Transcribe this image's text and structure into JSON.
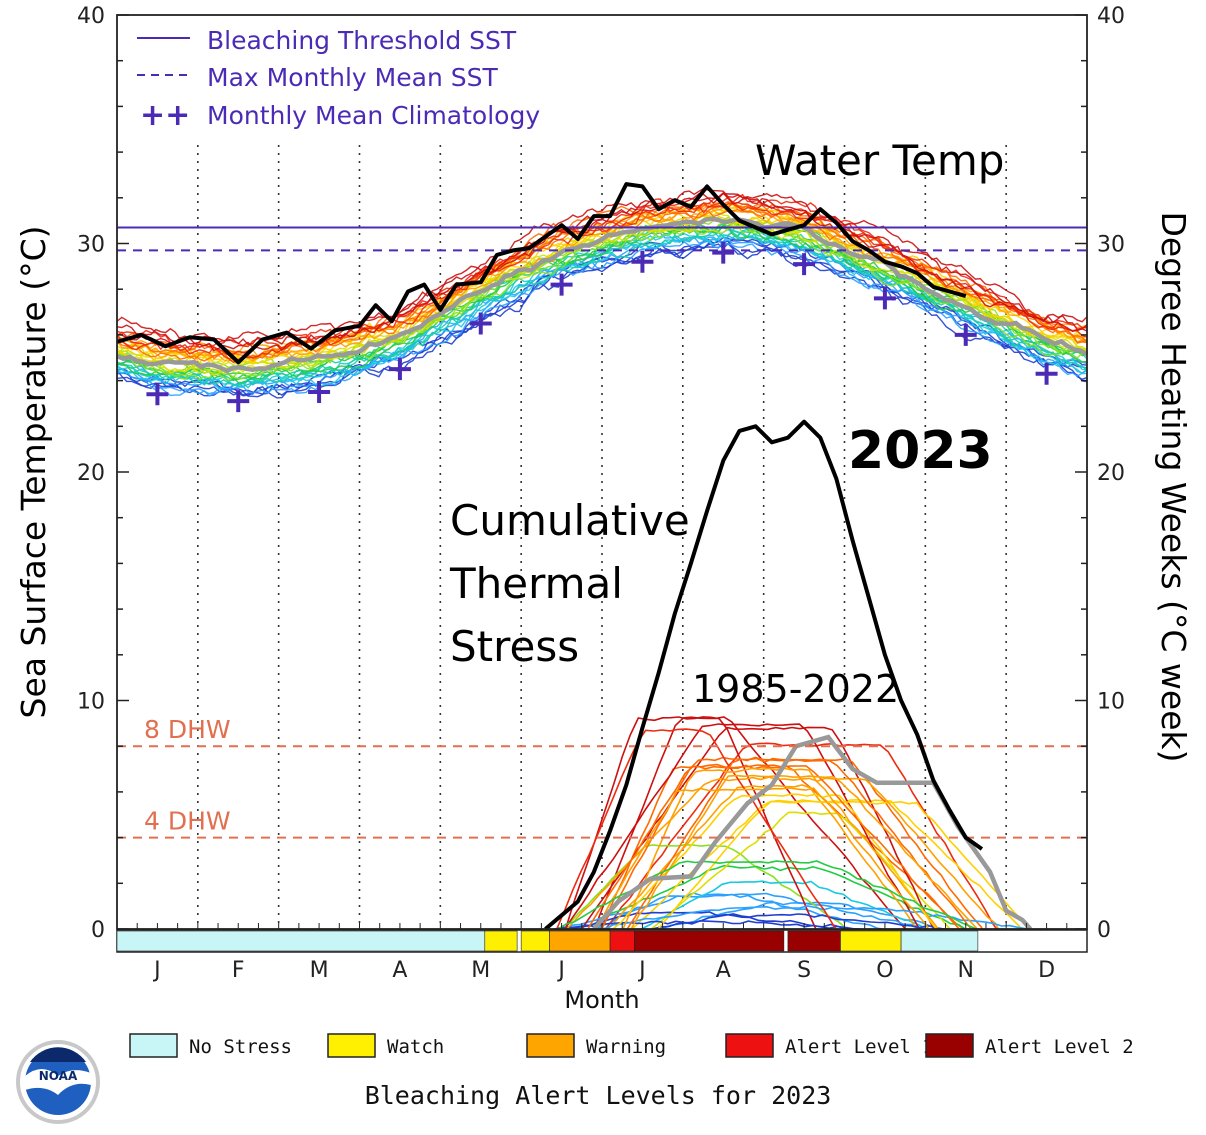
{
  "chart_data": {
    "type": "line",
    "y_left": {
      "label": "Sea Surface Temperature (°C)",
      "range": [
        0,
        40
      ],
      "ticks": [
        "0",
        "10",
        "20",
        "30",
        "40"
      ]
    },
    "y_right": {
      "label": "Degree Heating Weeks (°C week)",
      "range": [
        0,
        40
      ],
      "ticks": [
        "0",
        "10",
        "20",
        "30",
        "40"
      ]
    },
    "x_axis": {
      "label": "Month",
      "months": [
        "J",
        "F",
        "M",
        "A",
        "M",
        "J",
        "J",
        "A",
        "S",
        "O",
        "N",
        "D"
      ]
    },
    "legend": {
      "position": "top-left",
      "items": [
        {
          "label": "Bleaching Threshold SST",
          "style": "solid",
          "color": "#4b2bb5"
        },
        {
          "label": "Max Monthly Mean SST",
          "style": "dashed",
          "color": "#4b2bb5"
        },
        {
          "symbol": "++",
          "label": "Monthly Mean Climatology",
          "style": "cross",
          "color": "#4b2bb5"
        }
      ]
    },
    "bleaching_threshold_sst": 30.7,
    "max_monthly_mean_sst": 29.7,
    "dhw_reference_lines": [
      {
        "label": "8 DHW",
        "value": 8,
        "color": "#e07050"
      },
      {
        "label": "4 DHW",
        "value": 4,
        "color": "#e07050"
      }
    ],
    "monthly_mean_climatology": [
      {
        "month": 0.5,
        "value": 23.4
      },
      {
        "month": 1.5,
        "value": 23.1
      },
      {
        "month": 2.5,
        "value": 23.5
      },
      {
        "month": 3.5,
        "value": 24.5
      },
      {
        "month": 4.5,
        "value": 26.5
      },
      {
        "month": 5.5,
        "value": 28.2
      },
      {
        "month": 6.5,
        "value": 29.2
      },
      {
        "month": 7.5,
        "value": 29.6
      },
      {
        "month": 8.5,
        "value": 29.1
      },
      {
        "month": 9.5,
        "value": 27.6
      },
      {
        "month": 10.5,
        "value": 26.0
      },
      {
        "month": 11.5,
        "value": 24.3
      }
    ],
    "series": [
      {
        "name": "2023",
        "color": "#000000",
        "sst": [
          [
            0,
            25.7
          ],
          [
            0.3,
            26.0
          ],
          [
            0.6,
            25.5
          ],
          [
            0.9,
            25.9
          ],
          [
            1.2,
            25.8
          ],
          [
            1.5,
            24.8
          ],
          [
            1.8,
            25.8
          ],
          [
            2.1,
            26.1
          ],
          [
            2.4,
            25.4
          ],
          [
            2.7,
            26.2
          ],
          [
            3.0,
            26.4
          ],
          [
            3.2,
            27.3
          ],
          [
            3.4,
            26.6
          ],
          [
            3.6,
            27.9
          ],
          [
            3.8,
            28.2
          ],
          [
            4.0,
            27.1
          ],
          [
            4.2,
            28.2
          ],
          [
            4.5,
            28.3
          ],
          [
            4.7,
            29.5
          ],
          [
            4.9,
            29.7
          ],
          [
            5.1,
            29.8
          ],
          [
            5.3,
            30.3
          ],
          [
            5.5,
            30.8
          ],
          [
            5.7,
            30.2
          ],
          [
            5.9,
            31.2
          ],
          [
            6.1,
            31.2
          ],
          [
            6.3,
            32.6
          ],
          [
            6.5,
            32.5
          ],
          [
            6.7,
            31.5
          ],
          [
            6.9,
            31.9
          ],
          [
            7.1,
            31.6
          ],
          [
            7.3,
            32.5
          ],
          [
            7.5,
            31.7
          ],
          [
            7.7,
            31.0
          ],
          [
            7.9,
            30.7
          ],
          [
            8.1,
            30.4
          ],
          [
            8.3,
            30.6
          ],
          [
            8.5,
            30.8
          ],
          [
            8.7,
            31.5
          ],
          [
            8.9,
            30.9
          ],
          [
            9.1,
            30.1
          ],
          [
            9.3,
            29.7
          ],
          [
            9.5,
            29.2
          ],
          [
            9.7,
            29.0
          ],
          [
            9.9,
            28.7
          ],
          [
            10.1,
            28.1
          ],
          [
            10.3,
            27.9
          ],
          [
            10.5,
            27.7
          ]
        ],
        "dhw": [
          [
            5.3,
            0
          ],
          [
            5.5,
            0.6
          ],
          [
            5.7,
            1.2
          ],
          [
            5.9,
            2.5
          ],
          [
            6.1,
            4.3
          ],
          [
            6.3,
            6.3
          ],
          [
            6.5,
            8.8
          ],
          [
            6.7,
            11.2
          ],
          [
            6.9,
            13.8
          ],
          [
            7.1,
            16.0
          ],
          [
            7.3,
            18.3
          ],
          [
            7.5,
            20.5
          ],
          [
            7.7,
            21.8
          ],
          [
            7.9,
            22.0
          ],
          [
            8.1,
            21.3
          ],
          [
            8.3,
            21.5
          ],
          [
            8.5,
            22.2
          ],
          [
            8.7,
            21.5
          ],
          [
            8.9,
            19.7
          ],
          [
            9.1,
            17.0
          ],
          [
            9.3,
            14.5
          ],
          [
            9.5,
            12.0
          ],
          [
            9.7,
            10.0
          ],
          [
            9.9,
            8.5
          ],
          [
            10.1,
            6.5
          ],
          [
            10.3,
            5.2
          ],
          [
            10.5,
            4.0
          ],
          [
            10.7,
            3.5
          ]
        ]
      }
    ],
    "annotations": [
      {
        "text": "Water Temp",
        "color": "#000000"
      },
      {
        "text": "2023",
        "color": "#000000"
      },
      {
        "lines": [
          "Cumulative",
          "Thermal",
          "Stress"
        ],
        "color": "#000000"
      },
      {
        "text": "1985-2022",
        "color": "#6aa84f"
      }
    ],
    "alert_bar": [
      {
        "start": 0.0,
        "end": 4.55,
        "level": "No Stress"
      },
      {
        "start": 4.55,
        "end": 4.95,
        "level": "Watch"
      },
      {
        "start": 5.0,
        "end": 5.35,
        "level": "Watch"
      },
      {
        "start": 5.35,
        "end": 6.1,
        "level": "Warning"
      },
      {
        "start": 6.1,
        "end": 6.4,
        "level": "Alert Level 1"
      },
      {
        "start": 6.4,
        "end": 8.25,
        "level": "Alert Level 2"
      },
      {
        "start": 8.3,
        "end": 8.95,
        "level": "Alert Level 2"
      },
      {
        "start": 8.95,
        "end": 9.7,
        "level": "Watch"
      },
      {
        "start": 9.7,
        "end": 10.65,
        "level": "No Stress"
      }
    ],
    "alert_levels": {
      "title": "Bleaching Alert Levels for 2023",
      "items": [
        {
          "label": "No Stress",
          "color": "#c8f5f5"
        },
        {
          "label": "Watch",
          "color": "#ffef00"
        },
        {
          "label": "Warning",
          "color": "#ffa500"
        },
        {
          "label": "Alert Level 1",
          "color": "#ee1111"
        },
        {
          "label": "Alert Level 2",
          "color": "#990000"
        }
      ]
    }
  },
  "logo": {
    "text": "NOAA",
    "icon": "noaa-logo-icon"
  }
}
